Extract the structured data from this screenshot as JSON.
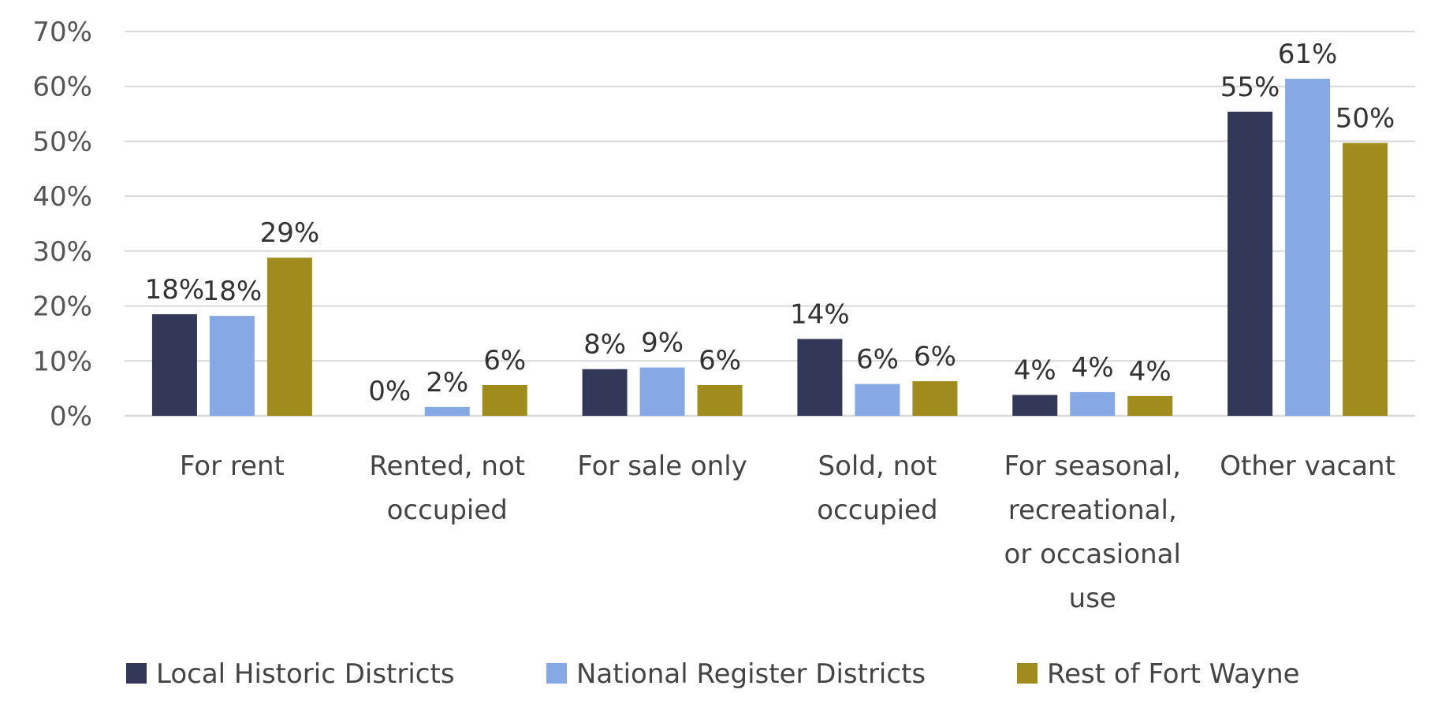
{
  "chart_data": {
    "type": "bar",
    "title": "",
    "xlabel": "",
    "ylabel": "",
    "ylim": [
      0,
      70
    ],
    "yticks": [
      {
        "value": 0,
        "label": "0%"
      },
      {
        "value": 10,
        "label": "10%"
      },
      {
        "value": 20,
        "label": "20%"
      },
      {
        "value": 30,
        "label": "30%"
      },
      {
        "value": 40,
        "label": "40%"
      },
      {
        "value": 50,
        "label": "50%"
      },
      {
        "value": 60,
        "label": "60%"
      },
      {
        "value": 70,
        "label": "70%"
      }
    ],
    "grid": true,
    "legend_position": "bottom",
    "categories": [
      [
        "For  rent"
      ],
      [
        "Rented, not",
        "occupied"
      ],
      [
        "For sale only"
      ],
      [
        "Sold, not",
        "occupied"
      ],
      [
        "For seasonal,",
        "recreational,",
        "or occasional",
        "use"
      ],
      [
        "Other vacant"
      ]
    ],
    "series": [
      {
        "name": "Local Historic Districts",
        "color": "#333758",
        "values": [
          18.5,
          0,
          8.5,
          14,
          3.8,
          55.4
        ],
        "labels": [
          "18%",
          "0%",
          "8%",
          "14%",
          "4%",
          "55%"
        ]
      },
      {
        "name": "National Register Districts",
        "color": "#86a8e4",
        "values": [
          18.2,
          1.6,
          8.8,
          5.8,
          4.3,
          61.4
        ],
        "labels": [
          "18%",
          "2%",
          "9%",
          "6%",
          "4%",
          "61%"
        ]
      },
      {
        "name": "Rest of Fort Wayne",
        "color": "#a08c1c",
        "values": [
          28.8,
          5.6,
          5.6,
          6.3,
          3.6,
          49.7
        ],
        "labels": [
          "29%",
          "6%",
          "6%",
          "6%",
          "4%",
          "50%"
        ]
      }
    ]
  }
}
